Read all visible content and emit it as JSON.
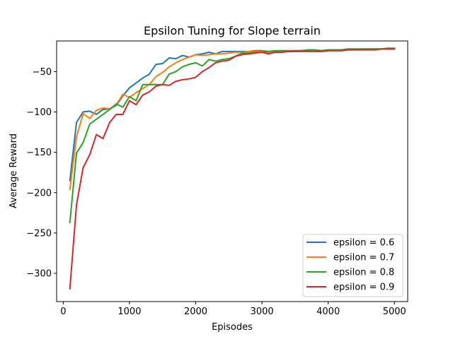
{
  "chart_data": {
    "type": "line",
    "title": "Epsilon Tuning for Slope terrain",
    "xlabel": "Episodes",
    "ylabel": "Average Reward",
    "xlim": [
      -100,
      5200
    ],
    "ylim": [
      -335,
      -12
    ],
    "xticks": [
      0,
      1000,
      2000,
      3000,
      4000,
      5000
    ],
    "yticks": [
      -300,
      -250,
      -200,
      -150,
      -100,
      -50
    ],
    "grid": false,
    "legend_position": "lower right",
    "x": [
      100,
      200,
      300,
      400,
      500,
      600,
      700,
      800,
      900,
      1000,
      1100,
      1200,
      1300,
      1400,
      1500,
      1600,
      1700,
      1800,
      1900,
      2000,
      2100,
      2200,
      2300,
      2400,
      2500,
      2600,
      2700,
      2800,
      2900,
      3000,
      3100,
      3200,
      3300,
      3400,
      3500,
      3600,
      3700,
      3800,
      3900,
      4000,
      4100,
      4200,
      4300,
      4400,
      4500,
      4600,
      4700,
      4800,
      4900,
      5000
    ],
    "series": [
      {
        "name": "epsilon = 0.6",
        "color": "#1f77b4",
        "values": [
          -185,
          -113,
          -100,
          -99,
          -103,
          -97,
          -96,
          -92,
          -80,
          -70,
          -64,
          -58,
          -53,
          -41,
          -40,
          -33,
          -34,
          -30,
          -32,
          -29,
          -28,
          -26,
          -28,
          -25,
          -25,
          -25,
          -25,
          -25,
          -24,
          -24,
          -25,
          -25,
          -24,
          -25,
          -24,
          -24,
          -23,
          -23,
          -24,
          -23,
          -23,
          -23,
          -22,
          -22,
          -22,
          -22,
          -22,
          -22,
          -22,
          -22
        ]
      },
      {
        "name": "epsilon = 0.7",
        "color": "#ff7f0e",
        "values": [
          -196,
          -131,
          -102,
          -108,
          -98,
          -95,
          -96,
          -91,
          -78,
          -82,
          -76,
          -71,
          -66,
          -56,
          -51,
          -44,
          -39,
          -35,
          -32,
          -29,
          -30,
          -29,
          -28,
          -28,
          -27,
          -26,
          -26,
          -25,
          -25,
          -25,
          -26,
          -25,
          -25,
          -25,
          -25,
          -24,
          -24,
          -24,
          -24,
          -24,
          -23,
          -23,
          -23,
          -23,
          -23,
          -22,
          -22,
          -22,
          -22,
          -22
        ]
      },
      {
        "name": "epsilon = 0.8",
        "color": "#2ca02c",
        "values": [
          -237,
          -151,
          -138,
          -115,
          -109,
          -103,
          -97,
          -90,
          -94,
          -81,
          -86,
          -66,
          -66,
          -66,
          -66,
          -53,
          -50,
          -44,
          -41,
          -39,
          -43,
          -35,
          -37,
          -35,
          -34,
          -31,
          -27,
          -27,
          -26,
          -26,
          -25,
          -24,
          -24,
          -24,
          -24,
          -24,
          -23,
          -23,
          -24,
          -23,
          -23,
          -23,
          -22,
          -22,
          -22,
          -22,
          -22,
          -22,
          -21,
          -21
        ]
      },
      {
        "name": "epsilon = 0.9",
        "color": "#d62728",
        "values": [
          -319,
          -215,
          -169,
          -153,
          -128,
          -133,
          -113,
          -103,
          -103,
          -86,
          -91,
          -79,
          -75,
          -68,
          -66,
          -67,
          -62,
          -60,
          -59,
          -57,
          -50,
          -45,
          -39,
          -37,
          -36,
          -31,
          -29,
          -28,
          -27,
          -26,
          -28,
          -26,
          -26,
          -25,
          -25,
          -25,
          -25,
          -25,
          -25,
          -24,
          -24,
          -24,
          -23,
          -23,
          -23,
          -23,
          -23,
          -22,
          -22,
          -22
        ]
      }
    ]
  }
}
